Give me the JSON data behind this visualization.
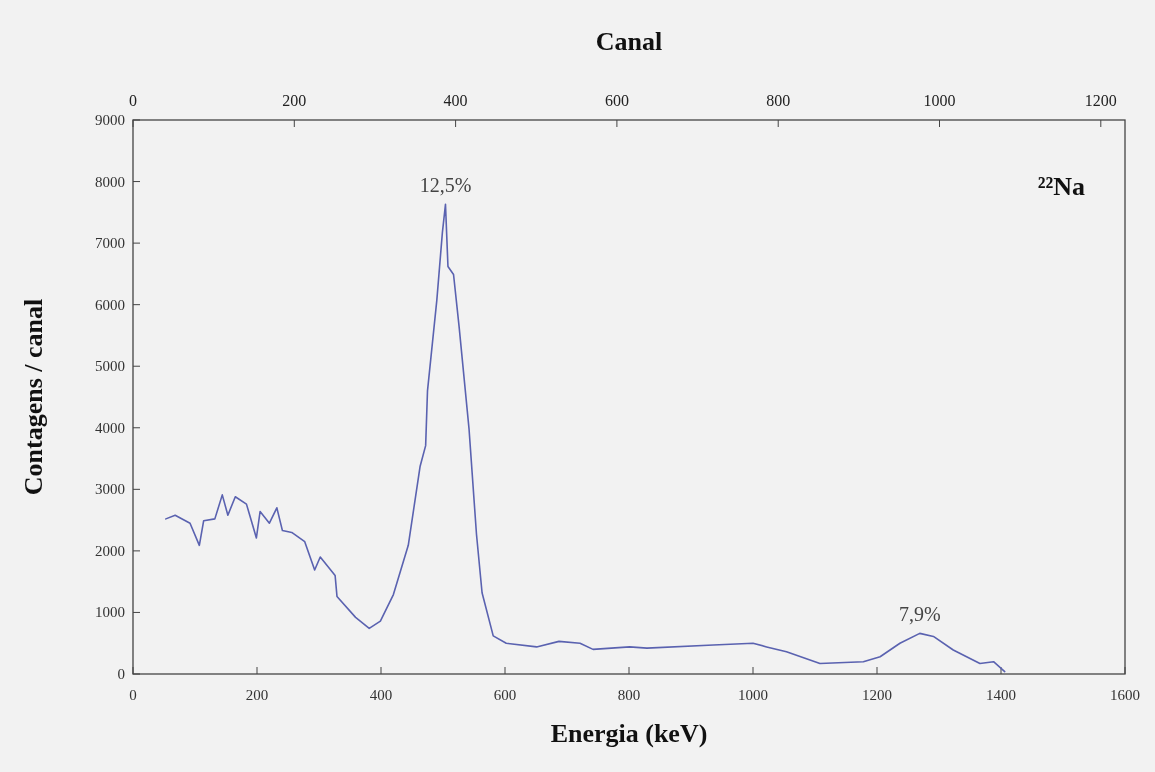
{
  "chart_data": {
    "type": "line",
    "xlabel": "Energia (keV)",
    "ylabel": "Contagens / canal",
    "x2label": "Canal",
    "xlim": [
      0,
      1600
    ],
    "xticks": [
      0,
      200,
      400,
      600,
      800,
      1000,
      1200,
      1400,
      1600
    ],
    "x2lim": [
      0,
      1230
    ],
    "x2ticks": [
      0,
      200,
      400,
      600,
      800,
      1000,
      1200
    ],
    "ylim": [
      0,
      9000
    ],
    "yticks": [
      0,
      1000,
      2000,
      3000,
      4000,
      5000,
      6000,
      7000,
      8000,
      9000
    ],
    "grid": false,
    "marker": "none",
    "line_style": "solid",
    "series": [
      {
        "color": "#5a62b0",
        "x": [
          53,
          68,
          92,
          107,
          114,
          132,
          144,
          153,
          165,
          183,
          199,
          205,
          220,
          232,
          241,
          256,
          277,
          293,
          302,
          326,
          329,
          359,
          381,
          399,
          420,
          444,
          463,
          472,
          475,
          490,
          499,
          504,
          508,
          517,
          526,
          542,
          554,
          563,
          581,
          602,
          651,
          687,
          721,
          742,
          801,
          829,
          936,
          1000,
          1022,
          1054,
          1108,
          1178,
          1205,
          1237,
          1269,
          1291,
          1323,
          1366,
          1388,
          1406
        ],
        "values": [
          2520,
          2580,
          2450,
          2090,
          2490,
          2520,
          2910,
          2580,
          2880,
          2760,
          2210,
          2640,
          2450,
          2700,
          2330,
          2300,
          2150,
          1690,
          1900,
          1600,
          1260,
          920,
          740,
          860,
          1290,
          2090,
          3370,
          3710,
          4600,
          6070,
          7170,
          7630,
          6620,
          6490,
          5640,
          3980,
          2270,
          1320,
          620,
          500,
          440,
          530,
          500,
          400,
          440,
          420,
          470,
          500,
          440,
          360,
          170,
          200,
          280,
          500,
          660,
          610,
          390,
          170,
          200,
          40
        ]
      }
    ],
    "annotations": [
      {
        "text": "12,5%",
        "x": 504,
        "y": 7630
      },
      {
        "text": "7,9%",
        "x": 1269,
        "y": 660
      },
      "²²Na"
    ]
  }
}
